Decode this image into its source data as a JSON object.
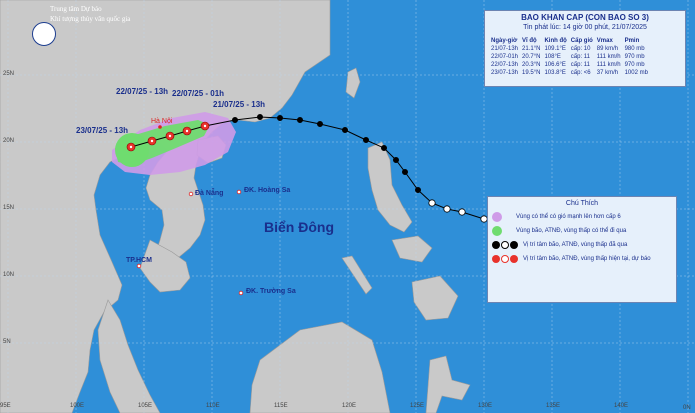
{
  "agency": {
    "line1": "Trung tâm Dự báo",
    "line2": "Khí tượng thủy văn quốc gia"
  },
  "bulletin": {
    "title": "BAO KHAN CAP (CON BAO SO 3)",
    "issued": "Tin phát lúc: 14 giờ 00 phút, 21/07/2025",
    "columns": [
      "Ngày-giờ",
      "Vĩ độ",
      "Kinh độ",
      "Cấp gió",
      "Vmax",
      "Pmin"
    ],
    "rows": [
      [
        "21/07-13h",
        "21.1°N",
        "109.1°E",
        "cấp: 10",
        "89 km/h",
        "980 mb"
      ],
      [
        "22/07-01h",
        "20.7°N",
        "108°E",
        "cấp: 11",
        "111 km/h",
        "970 mb"
      ],
      [
        "22/07-13h",
        "20.3°N",
        "106.6°E",
        "cấp: 11",
        "111 km/h",
        "970 mb"
      ],
      [
        "23/07-13h",
        "19.5°N",
        "103.8°E",
        "cấp: <6",
        "37 km/h",
        "1002 mb"
      ]
    ]
  },
  "legend": {
    "title": "Chú Thích",
    "items": [
      {
        "text": "Vùng có thể có gió mạnh lên hơn cấp 6",
        "color": "#cf9be8"
      },
      {
        "text": "Vùng bão, ATNĐ, vùng thấp có thể đi qua",
        "color": "#6fdc6f"
      },
      {
        "text": "Vị trí tâm bão, ATNĐ, vùng thấp đã qua",
        "color": "#000000"
      },
      {
        "text": "Vị trí tâm bão, ATNĐ, vùng thấp hiện tại, dự báo",
        "color": "#e8322b"
      }
    ]
  },
  "map_labels": {
    "ha_noi": "Hà Nội",
    "da_nang": "Đà Nẵng",
    "hoang_sa": "ĐK. Hoàng Sa",
    "tp_hcm": "TP.HCM",
    "truong_sa": "ĐK. Trường Sa",
    "bien_dong": "Biển Đông"
  },
  "forecast_labels": {
    "t1": "22/07/25 - 13h",
    "t2": "22/07/25 - 01h",
    "t3": "21/07/25 - 13h",
    "t4": "23/07/25 - 13h"
  },
  "axes": {
    "lon_ticks": [
      "95E",
      "100E",
      "105E",
      "110E",
      "115E",
      "120E",
      "125E",
      "130E",
      "135E",
      "140E"
    ],
    "lat_ticks": [
      "25N",
      "20N",
      "15N",
      "10N",
      "5N",
      "0N"
    ]
  },
  "colors": {
    "sea": "#2f8fd8",
    "land": "#c7c7c7",
    "panel": "#e6f0fb",
    "title_text": "#1a2f8c",
    "past_track": "#000000",
    "forecast_track": "#e8322b",
    "cone": "#6fdc6f",
    "wind_zone": "#cf9be8"
  }
}
